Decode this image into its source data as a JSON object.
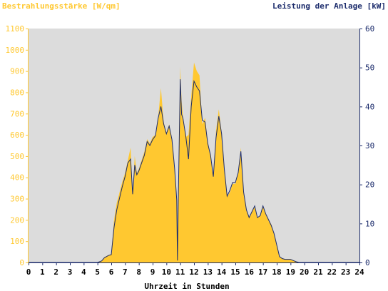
{
  "chart_data": {
    "type": "area",
    "title_left": "Bestrahlungsstärke [W/qm]",
    "title_right": "Leistung der Anlage [kW]",
    "xlabel": "Uhrzeit in Stunden",
    "x_ticks": [
      "0",
      "1",
      "2",
      "3",
      "4",
      "5",
      "6",
      "7",
      "8",
      "9",
      "10",
      "11",
      "12",
      "13",
      "14",
      "15",
      "16",
      "17",
      "18",
      "19",
      "20",
      "21",
      "22",
      "23",
      "24"
    ],
    "xlim": [
      0,
      24
    ],
    "y_left": {
      "ticks": [
        "0",
        "100",
        "200",
        "300",
        "400",
        "500",
        "600",
        "700",
        "800",
        "900",
        "1000",
        "1100"
      ],
      "ylim": [
        0,
        1100
      ]
    },
    "y_right": {
      "ticks": [
        "0",
        "10",
        "20",
        "30",
        "40",
        "50",
        "60"
      ],
      "ylim": [
        0,
        60
      ]
    },
    "colors": {
      "irradiance": "#ffc830",
      "power": "#1c2c6c",
      "plot_bg": "#dcdcdc",
      "left_axis_text": "#ffc830",
      "right_axis_text": "#1c2c6c"
    },
    "series": [
      {
        "name": "Bestrahlungsstärke [W/qm]",
        "axis": "left",
        "style": "area",
        "x": [
          0,
          5.0,
          5.3,
          5.5,
          5.8,
          6.0,
          6.2,
          6.4,
          6.6,
          6.8,
          7.0,
          7.2,
          7.4,
          7.55,
          7.7,
          7.85,
          8.0,
          8.2,
          8.4,
          8.6,
          8.8,
          9.0,
          9.2,
          9.4,
          9.6,
          9.8,
          10.0,
          10.2,
          10.4,
          10.6,
          10.75,
          10.8,
          10.85,
          11.0,
          11.1,
          11.2,
          11.4,
          11.6,
          11.8,
          12.0,
          12.2,
          12.4,
          12.6,
          12.8,
          13.0,
          13.2,
          13.4,
          13.6,
          13.8,
          14.0,
          14.2,
          14.4,
          14.6,
          14.8,
          15.0,
          15.2,
          15.4,
          15.6,
          15.8,
          16.0,
          16.2,
          16.4,
          16.6,
          16.8,
          17.0,
          17.2,
          17.4,
          17.6,
          17.8,
          18.0,
          18.2,
          18.4,
          18.6,
          18.8,
          19.0,
          19.2,
          19.4,
          19.6,
          24
        ],
        "values": [
          0,
          0,
          8,
          25,
          35,
          40,
          200,
          280,
          330,
          380,
          420,
          480,
          540,
          320,
          500,
          420,
          440,
          480,
          520,
          580,
          560,
          590,
          600,
          680,
          820,
          660,
          610,
          650,
          580,
          430,
          300,
          10,
          270,
          920,
          760,
          690,
          590,
          600,
          780,
          940,
          900,
          880,
          650,
          680,
          570,
          500,
          400,
          620,
          720,
          610,
          440,
          310,
          330,
          370,
          370,
          420,
          540,
          330,
          250,
          210,
          240,
          260,
          210,
          220,
          260,
          230,
          200,
          180,
          140,
          80,
          30,
          20,
          15,
          15,
          15,
          10,
          5,
          0,
          0
        ]
      },
      {
        "name": "Leistung der Anlage [kW]",
        "axis": "right",
        "style": "line",
        "x": [
          0,
          5.0,
          5.3,
          5.5,
          5.8,
          6.0,
          6.2,
          6.4,
          6.6,
          6.8,
          7.0,
          7.2,
          7.4,
          7.55,
          7.7,
          7.85,
          8.0,
          8.2,
          8.4,
          8.6,
          8.8,
          9.0,
          9.2,
          9.4,
          9.6,
          9.8,
          10.0,
          10.2,
          10.4,
          10.6,
          10.75,
          10.8,
          10.85,
          11.0,
          11.1,
          11.2,
          11.4,
          11.6,
          11.8,
          12.0,
          12.2,
          12.4,
          12.6,
          12.8,
          13.0,
          13.2,
          13.4,
          13.6,
          13.8,
          14.0,
          14.2,
          14.4,
          14.6,
          14.8,
          15.0,
          15.2,
          15.4,
          15.6,
          15.8,
          16.0,
          16.2,
          16.4,
          16.6,
          16.8,
          17.0,
          17.2,
          17.4,
          17.6,
          17.8,
          18.0,
          18.2,
          18.4,
          18.6,
          18.8,
          19.0,
          19.2,
          19.4,
          19.6,
          24
        ],
        "values": [
          0,
          0,
          0.4,
          1.2,
          1.8,
          2.0,
          9.0,
          13.5,
          16.5,
          19.5,
          22.0,
          25.5,
          26.5,
          17.5,
          25.0,
          22.5,
          23.5,
          25.5,
          27.5,
          31.0,
          30.0,
          31.5,
          32.5,
          37.0,
          40.0,
          35.5,
          33.0,
          35.0,
          31.5,
          24.0,
          16.0,
          0.5,
          14.0,
          47.0,
          38.0,
          37.0,
          32.5,
          26.5,
          40.0,
          46.5,
          45.0,
          44.0,
          36.5,
          36.0,
          30.5,
          27.5,
          22.0,
          32.0,
          37.5,
          33.0,
          24.0,
          17.0,
          18.5,
          20.5,
          20.5,
          23.0,
          28.5,
          18.0,
          13.5,
          11.5,
          13.0,
          14.5,
          11.5,
          12.0,
          14.5,
          12.5,
          11.0,
          9.5,
          7.5,
          4.5,
          1.5,
          1.0,
          0.8,
          0.8,
          0.8,
          0.5,
          0.2,
          0,
          0
        ]
      }
    ],
    "grid": false,
    "legend": "none"
  }
}
